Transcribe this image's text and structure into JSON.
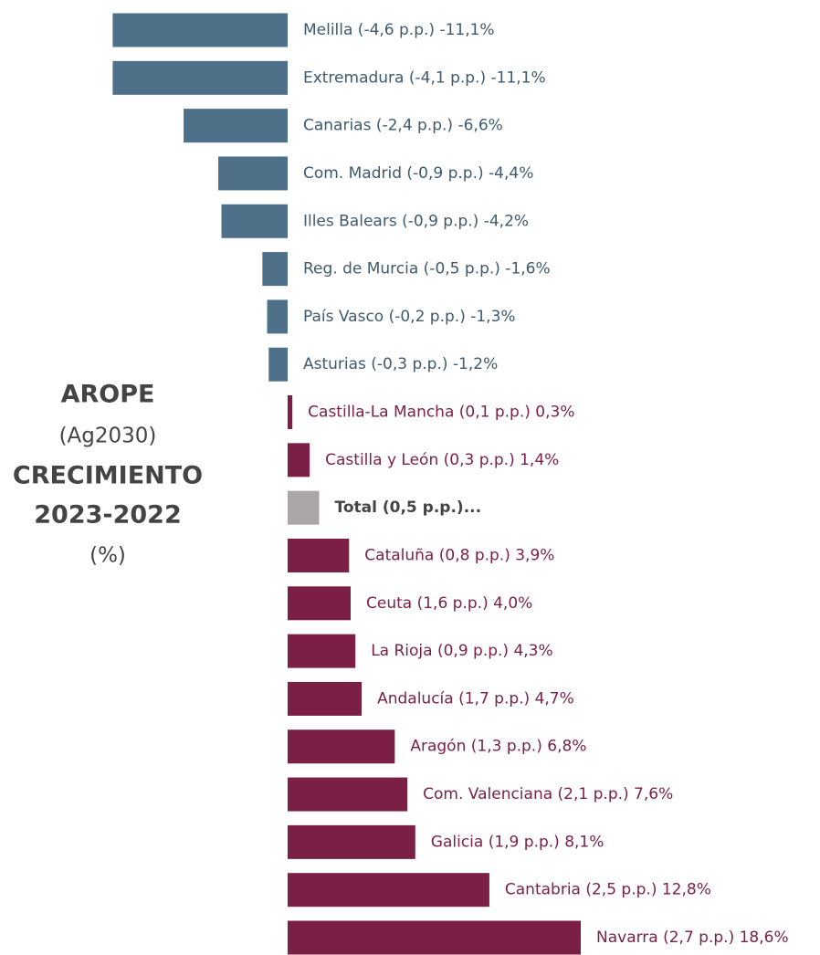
{
  "chart_data": {
    "type": "barh",
    "title_lines": [
      "AROPE",
      "(Ag2030)",
      "CRECIMIENTO",
      "2023-2022",
      "(%)"
    ],
    "categories": [
      "Melilla (-4,6 p.p.) -11,1%",
      "Extremadura (-4,1 p.p.) -11,1%",
      "Canarias (-2,4 p.p.) -6,6%",
      "Com. Madrid (-0,9 p.p.) -4,4%",
      "Illes Balears (-0,9 p.p.) -4,2%",
      "Reg. de Murcia (-0,5 p.p.) -1,6%",
      "País Vasco (-0,2 p.p.) -1,3%",
      "Asturias (-0,3 p.p.) -1,2%",
      "Castilla-La Mancha (0,1 p.p.) 0,3%",
      "Castilla y León (0,3 p.p.) 1,4%",
      "Total (0,5 p.p.)...",
      "Cataluña (0,8 p.p.) 3,9%",
      "Ceuta (1,6 p.p.) 4,0%",
      "La Rioja (0,9 p.p.) 4,3%",
      "Andalucía (1,7 p.p.) 4,7%",
      "Aragón (1,3 p.p.) 6,8%",
      "Com. Valenciana (2,1 p.p.) 7,6%",
      "Galicia (1,9 p.p.) 8,1%",
      "Cantabria (2,5 p.p.) 12,8%",
      "Navarra (2,7 p.p.) 18,6%"
    ],
    "values": [
      -11.1,
      -11.1,
      -6.6,
      -4.4,
      -4.2,
      -1.6,
      -1.3,
      -1.2,
      0.3,
      1.4,
      2.0,
      3.9,
      4.0,
      4.3,
      4.7,
      6.8,
      7.6,
      8.1,
      12.8,
      18.6
    ],
    "negative_color": "#4e7189",
    "positive_color": "#7b1f47",
    "total_color": "#aaa6a5",
    "total_index": 10,
    "xlim": [
      -18.25,
      33.78
    ]
  }
}
